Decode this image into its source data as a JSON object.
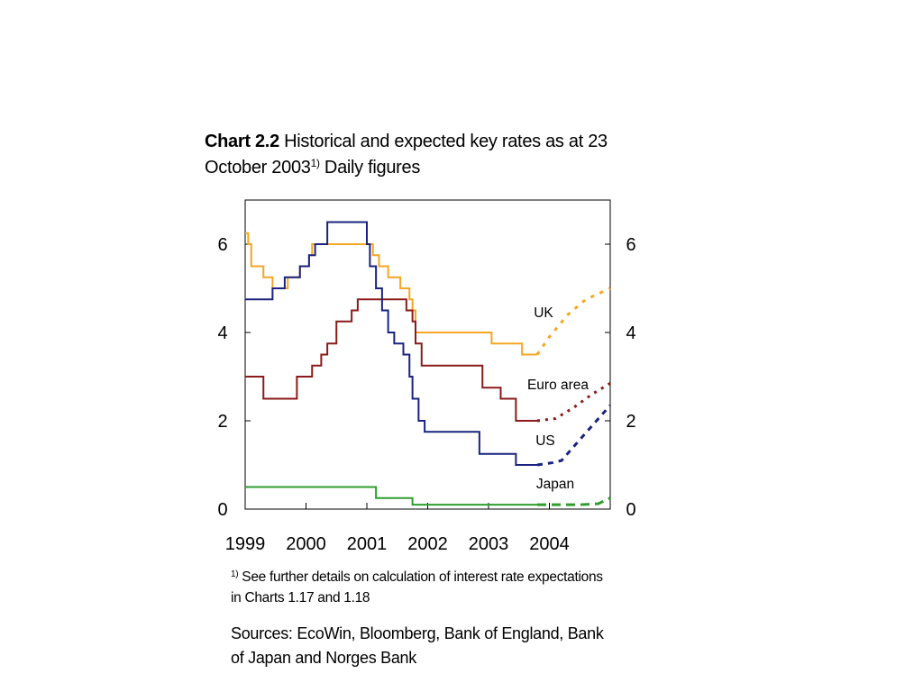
{
  "title": {
    "bold": "Chart 2.2",
    "text_1": " Historical and expected key rates as at 23 October 2003",
    "superscript": "1)",
    "text_2": " Daily figures"
  },
  "footnote": {
    "marker": "1)",
    "text": " See further details on calculation of interest rate expectations in Charts 1.17 and 1.18"
  },
  "sources": "Sources: EcoWin, Bloomberg, Bank of England, Bank of Japan and Norges Bank",
  "chart_data": {
    "type": "line",
    "title": "Historical and expected key rates as at 23 October 2003",
    "xlabel": "",
    "ylabel": "",
    "xlim": [
      1999.0,
      2005.0
    ],
    "ylim": [
      0,
      7
    ],
    "yticks": [
      0,
      2,
      4,
      6
    ],
    "ytick_labels": [
      "0",
      "2",
      "4",
      "6"
    ],
    "xtick_labels": [
      "1999",
      "2000",
      "2001",
      "2002",
      "2003",
      "2004"
    ],
    "xtick_label_positions": [
      1999.0,
      2000.0,
      2001.0,
      2002.0,
      2003.0,
      2004.0
    ],
    "right_axis_mirrors_left": true,
    "grid": false,
    "legend": "inline labels",
    "series": [
      {
        "name": "UK",
        "color": "#F5A623",
        "historical": [
          [
            1999.0,
            6.25
          ],
          [
            1999.05,
            6.0
          ],
          [
            1999.1,
            5.5
          ],
          [
            1999.3,
            5.25
          ],
          [
            1999.45,
            5.0
          ],
          [
            1999.7,
            5.25
          ],
          [
            1999.9,
            5.5
          ],
          [
            2000.05,
            5.75
          ],
          [
            2000.1,
            6.0
          ],
          [
            2001.1,
            5.75
          ],
          [
            2001.2,
            5.5
          ],
          [
            2001.35,
            5.25
          ],
          [
            2001.55,
            5.0
          ],
          [
            2001.7,
            4.75
          ],
          [
            2001.75,
            4.5
          ],
          [
            2001.8,
            4.0
          ],
          [
            2003.05,
            3.75
          ],
          [
            2003.55,
            3.5
          ],
          [
            2003.8,
            3.5
          ]
        ],
        "expected": [
          [
            2003.8,
            3.5
          ],
          [
            2004.0,
            3.9
          ],
          [
            2004.3,
            4.4
          ],
          [
            2004.6,
            4.75
          ],
          [
            2005.0,
            5.0
          ]
        ]
      },
      {
        "name": "Euro area",
        "color": "#8B1A1A",
        "historical": [
          [
            1999.0,
            3.0
          ],
          [
            1999.3,
            2.5
          ],
          [
            1999.85,
            3.0
          ],
          [
            2000.1,
            3.25
          ],
          [
            2000.25,
            3.5
          ],
          [
            2000.35,
            3.75
          ],
          [
            2000.5,
            4.25
          ],
          [
            2000.75,
            4.5
          ],
          [
            2000.85,
            4.75
          ],
          [
            2001.65,
            4.5
          ],
          [
            2001.75,
            4.25
          ],
          [
            2001.8,
            3.75
          ],
          [
            2001.9,
            3.25
          ],
          [
            2002.9,
            2.75
          ],
          [
            2003.2,
            2.5
          ],
          [
            2003.45,
            2.0
          ],
          [
            2003.8,
            2.0
          ]
        ],
        "expected": [
          [
            2003.8,
            2.0
          ],
          [
            2004.1,
            2.05
          ],
          [
            2004.4,
            2.3
          ],
          [
            2004.7,
            2.6
          ],
          [
            2005.0,
            2.85
          ]
        ]
      },
      {
        "name": "US",
        "color": "#1A237E",
        "historical": [
          [
            1999.0,
            4.75
          ],
          [
            1999.45,
            5.0
          ],
          [
            1999.65,
            5.25
          ],
          [
            1999.9,
            5.5
          ],
          [
            2000.05,
            5.75
          ],
          [
            2000.15,
            6.0
          ],
          [
            2000.35,
            6.5
          ],
          [
            2001.0,
            6.0
          ],
          [
            2001.05,
            5.5
          ],
          [
            2001.15,
            5.0
          ],
          [
            2001.25,
            4.5
          ],
          [
            2001.35,
            4.0
          ],
          [
            2001.45,
            3.75
          ],
          [
            2001.6,
            3.5
          ],
          [
            2001.7,
            3.0
          ],
          [
            2001.75,
            2.5
          ],
          [
            2001.85,
            2.0
          ],
          [
            2001.95,
            1.75
          ],
          [
            2002.85,
            1.25
          ],
          [
            2003.45,
            1.0
          ],
          [
            2003.8,
            1.0
          ]
        ],
        "expected": [
          [
            2003.8,
            1.0
          ],
          [
            2004.05,
            1.05
          ],
          [
            2004.2,
            1.1
          ],
          [
            2004.55,
            1.65
          ],
          [
            2005.0,
            2.35
          ]
        ]
      },
      {
        "name": "Japan",
        "color": "#2E9E2E",
        "historical": [
          [
            1999.0,
            0.5
          ],
          [
            2001.1,
            0.5
          ],
          [
            2001.15,
            0.25
          ],
          [
            2001.7,
            0.25
          ],
          [
            2001.75,
            0.1
          ],
          [
            2003.8,
            0.1
          ]
        ],
        "expected": [
          [
            2003.8,
            0.1
          ],
          [
            2004.5,
            0.1
          ],
          [
            2004.8,
            0.12
          ],
          [
            2005.0,
            0.25
          ]
        ]
      }
    ]
  }
}
